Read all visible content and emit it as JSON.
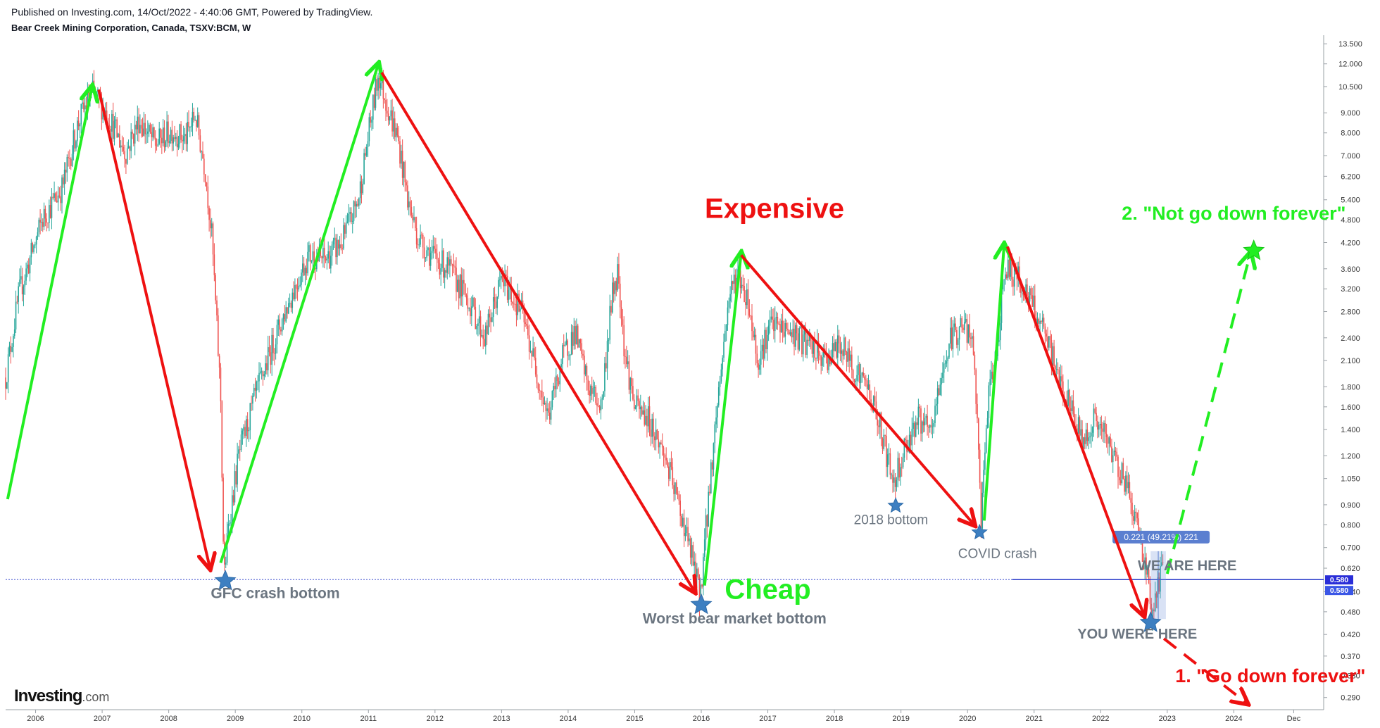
{
  "header": {
    "published": "Published on Investing.com, 14/Oct/2022 - 4:40:06 GMT, Powered by TradingView.",
    "symbol": "Bear Creek Mining Corporation, Canada, TSXV:BCM, W"
  },
  "branding": {
    "logo_main": "Investing",
    "logo_suffix": ".com"
  },
  "colors": {
    "up_arrow": "#22ee22",
    "down_arrow": "#ee1111",
    "star": "#3d7fc1",
    "label_gray": "#6b7580",
    "candle_up": "#26a69a",
    "candle_down": "#ef5350",
    "price_line": "#3344cc",
    "price_badge": "#2a2ed8",
    "projection_badge": "#5b7fd0"
  },
  "chart_data": {
    "type": "candlestick",
    "title": "Bear Creek Mining Corporation, Canada, TSXV:BCM, W",
    "scale": "log",
    "ylim": [
      0.27,
      14.2
    ],
    "xlim": [
      2005.55,
      2025.35
    ],
    "x_ticks": [
      "2006",
      "2007",
      "2008",
      "2009",
      "2010",
      "2011",
      "2012",
      "2013",
      "2014",
      "2015",
      "2016",
      "2017",
      "2018",
      "2019",
      "2020",
      "2021",
      "2022",
      "2023",
      "2024",
      "Dec"
    ],
    "x_tick_positions": [
      2006,
      2007,
      2008,
      2009,
      2010,
      2011,
      2012,
      2013,
      2014,
      2015,
      2016,
      2017,
      2018,
      2019,
      2020,
      2021,
      2022,
      2023,
      2024,
      2024.9
    ],
    "y_ticks": [
      "13.500",
      "12.000",
      "10.500",
      "9.000",
      "8.000",
      "7.000",
      "6.200",
      "5.400",
      "4.800",
      "4.200",
      "3.600",
      "3.200",
      "2.800",
      "2.400",
      "2.100",
      "1.800",
      "1.600",
      "1.400",
      "1.200",
      "1.050",
      "0.900",
      "0.800",
      "0.700",
      "0.620",
      "0.540",
      "0.480",
      "0.420",
      "0.370",
      "0.330",
      "0.290"
    ],
    "current_price": 0.58,
    "current_price_label": "0.580",
    "price_path": [
      [
        2005.55,
        1.9
      ],
      [
        2005.75,
        3.1
      ],
      [
        2006.1,
        4.8
      ],
      [
        2006.4,
        5.8
      ],
      [
        2006.65,
        8.6
      ],
      [
        2006.85,
        10.2
      ],
      [
        2007.1,
        8.8
      ],
      [
        2007.35,
        7.1
      ],
      [
        2007.55,
        8.6
      ],
      [
        2007.8,
        7.5
      ],
      [
        2008.05,
        8.1
      ],
      [
        2008.25,
        7.7
      ],
      [
        2008.4,
        8.9
      ],
      [
        2008.55,
        6.4
      ],
      [
        2008.65,
        4.3
      ],
      [
        2008.72,
        2.6
      ],
      [
        2008.78,
        1.7
      ],
      [
        2008.83,
        0.58
      ],
      [
        2008.9,
        0.8
      ],
      [
        2009.05,
        1.2
      ],
      [
        2009.3,
        1.7
      ],
      [
        2009.6,
        2.4
      ],
      [
        2009.85,
        3.1
      ],
      [
        2010.1,
        3.9
      ],
      [
        2010.35,
        3.8
      ],
      [
        2010.6,
        4.2
      ],
      [
        2010.85,
        5.4
      ],
      [
        2011.0,
        7.9
      ],
      [
        2011.15,
        11.3
      ],
      [
        2011.3,
        9.2
      ],
      [
        2011.45,
        7.6
      ],
      [
        2011.6,
        5.3
      ],
      [
        2011.75,
        4.3
      ],
      [
        2011.95,
        3.9
      ],
      [
        2012.2,
        3.6
      ],
      [
        2012.5,
        3.0
      ],
      [
        2012.75,
        2.4
      ],
      [
        2013.0,
        3.4
      ],
      [
        2013.3,
        2.8
      ],
      [
        2013.55,
        1.9
      ],
      [
        2013.7,
        1.5
      ],
      [
        2013.9,
        2.1
      ],
      [
        2014.1,
        2.5
      ],
      [
        2014.3,
        1.8
      ],
      [
        2014.5,
        1.6
      ],
      [
        2014.65,
        3.0
      ],
      [
        2014.75,
        3.6
      ],
      [
        2014.85,
        2.2
      ],
      [
        2015.0,
        1.6
      ],
      [
        2015.2,
        1.5
      ],
      [
        2015.45,
        1.2
      ],
      [
        2015.7,
        0.85
      ],
      [
        2015.9,
        0.62
      ],
      [
        2015.98,
        0.52
      ],
      [
        2016.1,
        0.9
      ],
      [
        2016.25,
        1.7
      ],
      [
        2016.42,
        3.1
      ],
      [
        2016.55,
        3.5
      ],
      [
        2016.7,
        3.0
      ],
      [
        2016.85,
        2.1
      ],
      [
        2017.05,
        2.6
      ],
      [
        2017.3,
        2.5
      ],
      [
        2017.6,
        2.3
      ],
      [
        2017.85,
        2.1
      ],
      [
        2018.1,
        2.3
      ],
      [
        2018.3,
        2.0
      ],
      [
        2018.5,
        1.8
      ],
      [
        2018.7,
        1.4
      ],
      [
        2018.88,
        1.02
      ],
      [
        2019.05,
        1.25
      ],
      [
        2019.25,
        1.5
      ],
      [
        2019.45,
        1.35
      ],
      [
        2019.6,
        1.9
      ],
      [
        2019.75,
        2.4
      ],
      [
        2019.95,
        2.6
      ],
      [
        2020.1,
        2.2
      ],
      [
        2020.2,
        0.82
      ],
      [
        2020.3,
        1.6
      ],
      [
        2020.45,
        2.3
      ],
      [
        2020.55,
        3.6
      ],
      [
        2020.7,
        3.5
      ],
      [
        2020.9,
        3.1
      ],
      [
        2021.05,
        2.7
      ],
      [
        2021.25,
        2.2
      ],
      [
        2021.45,
        1.75
      ],
      [
        2021.6,
        1.5
      ],
      [
        2021.75,
        1.3
      ],
      [
        2021.9,
        1.5
      ],
      [
        2022.05,
        1.35
      ],
      [
        2022.25,
        1.15
      ],
      [
        2022.4,
        1.0
      ],
      [
        2022.55,
        0.8
      ],
      [
        2022.7,
        0.6
      ],
      [
        2022.78,
        0.46
      ],
      [
        2022.86,
        0.56
      ],
      [
        2022.94,
        0.63
      ]
    ],
    "arrows": [
      {
        "color": "green",
        "style": "solid",
        "from": [
          2005.58,
          0.93
        ],
        "to": [
          2006.85,
          10.5
        ]
      },
      {
        "color": "red",
        "style": "solid",
        "from": [
          2006.95,
          10.3
        ],
        "to": [
          2008.62,
          0.62
        ]
      },
      {
        "color": "green",
        "style": "solid",
        "from": [
          2008.78,
          0.64
        ],
        "to": [
          2011.15,
          12.0
        ]
      },
      {
        "color": "red",
        "style": "solid",
        "from": [
          2011.2,
          11.4
        ],
        "to": [
          2015.9,
          0.54
        ]
      },
      {
        "color": "green",
        "style": "solid",
        "from": [
          2016.05,
          0.56
        ],
        "to": [
          2016.6,
          3.95
        ]
      },
      {
        "color": "red",
        "style": "solid",
        "from": [
          2016.6,
          3.9
        ],
        "to": [
          2020.1,
          0.8
        ]
      },
      {
        "color": "green",
        "style": "solid",
        "from": [
          2020.25,
          0.82
        ],
        "to": [
          2020.55,
          4.15
        ]
      },
      {
        "color": "red",
        "style": "solid",
        "from": [
          2020.6,
          4.1
        ],
        "to": [
          2022.65,
          0.47
        ]
      },
      {
        "color": "green",
        "style": "dashed",
        "from": [
          2023.0,
          0.6
        ],
        "to": [
          2024.25,
          3.95
        ]
      },
      {
        "color": "red",
        "style": "dashed",
        "from": [
          2022.95,
          0.41
        ],
        "to": [
          2024.2,
          0.28
        ]
      }
    ],
    "stars": [
      {
        "name": "gfc-star",
        "x": 2008.85,
        "y": 0.575,
        "size": 30,
        "color": "blue"
      },
      {
        "name": "bear-bottom-star",
        "x": 2016.0,
        "y": 0.5,
        "size": 30,
        "color": "blue"
      },
      {
        "name": "bottom-2018-star",
        "x": 2018.92,
        "y": 0.895,
        "size": 22,
        "color": "blue"
      },
      {
        "name": "covid-star",
        "x": 2020.18,
        "y": 0.765,
        "size": 22,
        "color": "blue"
      },
      {
        "name": "current-star",
        "x": 2022.75,
        "y": 0.45,
        "size": 30,
        "color": "blue"
      },
      {
        "name": "target-star",
        "x": 2024.3,
        "y": 4.0,
        "size": 30,
        "color": "green"
      }
    ],
    "projection": {
      "from": [
        2022.75,
        0.46
      ],
      "to": [
        2022.98,
        0.685
      ],
      "label": "0.221 (49.21%) 221"
    },
    "annotations": [
      {
        "name": "label-gfc",
        "text": "GFC crash bottom",
        "x": 2009.6,
        "y": 0.52,
        "size": 21,
        "color": "gray",
        "bold": true
      },
      {
        "name": "label-worst-bear",
        "text": "Worst bear market bottom",
        "x": 2016.5,
        "y": 0.448,
        "size": 21,
        "color": "gray",
        "bold": true
      },
      {
        "name": "label-2018-bottom",
        "text": "2018 bottom",
        "x": 2018.85,
        "y": 0.803,
        "size": 19,
        "color": "gray",
        "bold": false
      },
      {
        "name": "label-covid",
        "text": "COVID crash",
        "x": 2020.45,
        "y": 0.658,
        "size": 19,
        "color": "gray",
        "bold": false
      },
      {
        "name": "label-we-are-here",
        "text": "WE ARE HERE",
        "x": 2023.3,
        "y": 0.612,
        "size": 20,
        "color": "gray",
        "bold": true
      },
      {
        "name": "label-you-were-here",
        "text": "YOU WERE HERE",
        "x": 2022.55,
        "y": 0.41,
        "size": 20,
        "color": "gray",
        "bold": true
      },
      {
        "name": "label-expensive",
        "text": "Expensive",
        "x": 2017.1,
        "y": 4.85,
        "size": 40,
        "color": "red",
        "bold": true
      },
      {
        "name": "label-cheap",
        "text": "Cheap",
        "x": 2017.0,
        "y": 0.518,
        "size": 40,
        "color": "green",
        "bold": true
      },
      {
        "name": "label-not-go-down",
        "text": "2. \"Not go down forever\"",
        "x": 2024.0,
        "y": 4.8,
        "size": 27,
        "color": "green",
        "bold": true
      },
      {
        "name": "label-go-down",
        "text": "1. \"Go down forever\"",
        "x": 2024.55,
        "y": 0.317,
        "size": 27,
        "color": "red",
        "bold": true
      }
    ]
  }
}
